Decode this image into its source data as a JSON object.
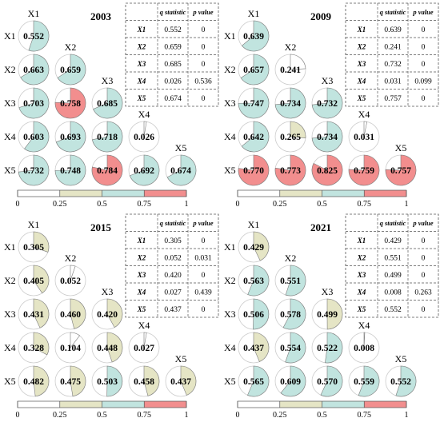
{
  "chart_data": {
    "type": "heatmap",
    "variables": [
      "X1",
      "X2",
      "X3",
      "X4",
      "X5"
    ],
    "colorbar": {
      "ticks": [
        "0",
        "0.25",
        "0.5",
        "0.75",
        "1"
      ],
      "bins": [
        {
          "from": 0,
          "to": 0.25,
          "color": "#ffffff"
        },
        {
          "from": 0.25,
          "to": 0.5,
          "color": "#e5e5c5"
        },
        {
          "from": 0.5,
          "to": 0.75,
          "color": "#c1e4df"
        },
        {
          "from": 0.75,
          "to": 1,
          "color": "#f28e8e"
        }
      ]
    },
    "table_headers": {
      "q": "q statistic",
      "p": "p value"
    },
    "panels": [
      {
        "year": "2003",
        "matrix": [
          [
            "0.552"
          ],
          [
            "0.663",
            "0.659"
          ],
          [
            "0.703",
            "0.758",
            "0.685"
          ],
          [
            "0.603",
            "0.693",
            "0.718",
            "0.026"
          ],
          [
            "0.732",
            "0.748",
            "0.784",
            "0.692",
            "0.674"
          ]
        ],
        "table": [
          {
            "var": "X1",
            "q": "0.552",
            "p": "0"
          },
          {
            "var": "X2",
            "q": "0.659",
            "p": "0"
          },
          {
            "var": "X3",
            "q": "0.685",
            "p": "0"
          },
          {
            "var": "X4",
            "q": "0.026",
            "p": "0.536"
          },
          {
            "var": "X5",
            "q": "0.674",
            "p": "0"
          }
        ]
      },
      {
        "year": "2009",
        "matrix": [
          [
            "0.639"
          ],
          [
            "0.657",
            "0.241"
          ],
          [
            "0.747",
            "0.734",
            "0.732"
          ],
          [
            "0.642",
            "0.265",
            "0.734",
            "0.031"
          ],
          [
            "0.770",
            "0.773",
            "0.825",
            "0.759",
            "0.757"
          ]
        ],
        "table": [
          {
            "var": "X1",
            "q": "0.639",
            "p": "0"
          },
          {
            "var": "X2",
            "q": "0.241",
            "p": "0"
          },
          {
            "var": "X3",
            "q": "0.732",
            "p": "0"
          },
          {
            "var": "X4",
            "q": "0.031",
            "p": "0.099"
          },
          {
            "var": "X5",
            "q": "0.757",
            "p": "0"
          }
        ]
      },
      {
        "year": "2015",
        "matrix": [
          [
            "0.305"
          ],
          [
            "0.405",
            "0.052"
          ],
          [
            "0.431",
            "0.460",
            "0.420"
          ],
          [
            "0.328",
            "0.104",
            "0.448",
            "0.027"
          ],
          [
            "0.482",
            "0.475",
            "0.503",
            "0.458",
            "0.437"
          ]
        ],
        "table": [
          {
            "var": "X1",
            "q": "0.305",
            "p": "0"
          },
          {
            "var": "X2",
            "q": "0.052",
            "p": "0.031"
          },
          {
            "var": "X3",
            "q": "0.420",
            "p": "0"
          },
          {
            "var": "X4",
            "q": "0.027",
            "p": "0.439"
          },
          {
            "var": "X5",
            "q": "0.437",
            "p": "0"
          }
        ]
      },
      {
        "year": "2021",
        "matrix": [
          [
            "0.429"
          ],
          [
            "0.563",
            "0.551"
          ],
          [
            "0.506",
            "0.578",
            "0.499"
          ],
          [
            "0.437",
            "0.554",
            "0.522",
            "0.008"
          ],
          [
            "0.565",
            "0.609",
            "0.570",
            "0.559",
            "0.552"
          ]
        ],
        "table": [
          {
            "var": "X1",
            "q": "0.429",
            "p": "0"
          },
          {
            "var": "X2",
            "q": "0.551",
            "p": "0"
          },
          {
            "var": "X3",
            "q": "0.499",
            "p": "0"
          },
          {
            "var": "X4",
            "q": "0.008",
            "p": "0.263"
          },
          {
            "var": "X5",
            "q": "0.552",
            "p": "0"
          }
        ]
      }
    ]
  }
}
